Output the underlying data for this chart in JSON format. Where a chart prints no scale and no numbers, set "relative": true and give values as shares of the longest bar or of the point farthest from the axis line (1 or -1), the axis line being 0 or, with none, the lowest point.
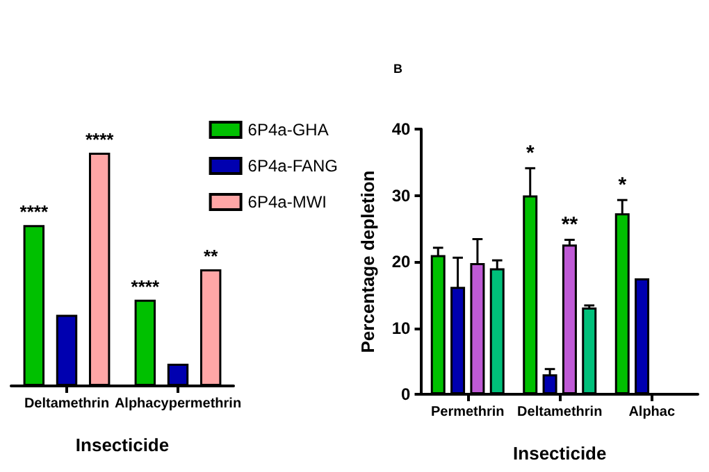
{
  "chart_data": [
    {
      "type": "bar",
      "xlabel": "Insecticide",
      "relative": true,
      "legend": "right",
      "categories": [
        "Deltamethrin",
        "Alphacypermethrin"
      ],
      "series": [
        {
          "name": "6P4a-GHA",
          "color": "#00c000",
          "values": [
            0.69,
            0.37
          ]
        },
        {
          "name": "6P4a-FANG",
          "color": "#0000b0",
          "values": [
            0.305,
            0.095
          ]
        },
        {
          "name": "6P4a-MWI",
          "color": "#ffa6a6",
          "values": [
            1,
            0.5
          ]
        }
      ],
      "annotations": [
        "****",
        "****",
        "****",
        "**"
      ]
    },
    {
      "type": "bar",
      "title": "B",
      "xlabel": "Insecticide",
      "ylabel": "Percentage depletion",
      "ylim": [
        0,
        40
      ],
      "yticks": [
        0,
        10,
        20,
        30,
        40
      ],
      "categories": [
        "Permethrin",
        "Deltamethrin",
        "Alphac"
      ],
      "series": [
        {
          "color": "#00c000",
          "values": [
            21,
            30,
            27.3
          ],
          "errors": [
            1.1,
            4.1,
            2
          ]
        },
        {
          "color": "#0000b0",
          "values": [
            16.2,
            3,
            17.5
          ],
          "errors": [
            4.4,
            0.8,
            null
          ]
        },
        {
          "color": "#bf5ad6",
          "values": [
            19.8,
            22.6,
            null
          ],
          "errors": [
            3.6,
            0.7,
            null
          ]
        },
        {
          "color": "#00c07a",
          "values": [
            19,
            13.1,
            null
          ],
          "errors": [
            1.2,
            0.3,
            null
          ]
        }
      ],
      "annotations": [
        "*",
        "**",
        "*"
      ]
    }
  ]
}
